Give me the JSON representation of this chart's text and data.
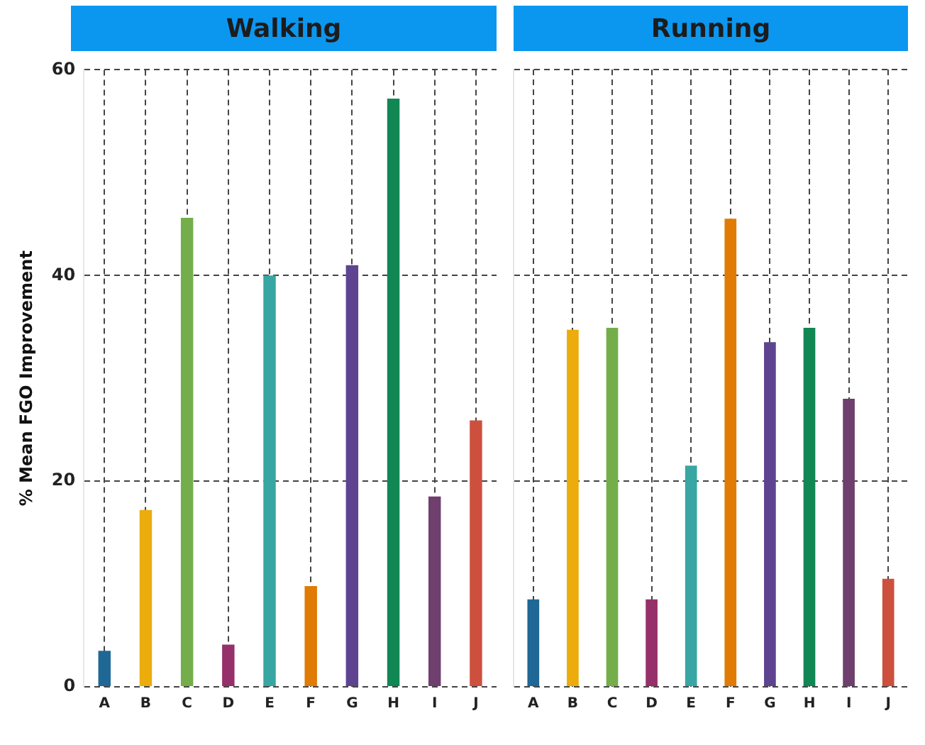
{
  "chart_data": [
    {
      "type": "bar",
      "title": "Walking",
      "ylabel": "% Mean FGO Improvement",
      "categories": [
        "A",
        "B",
        "C",
        "D",
        "E",
        "F",
        "G",
        "H",
        "I",
        "J"
      ],
      "values": [
        3.5,
        17.2,
        45.6,
        4.1,
        40.0,
        9.8,
        41.0,
        57.2,
        18.5,
        25.9
      ],
      "colors": [
        "#1f6896",
        "#ebac0c",
        "#74ae4a",
        "#96306a",
        "#38a6a3",
        "#e07b06",
        "#5e4490",
        "#118753",
        "#6f3f6e",
        "#cd503e"
      ],
      "ylim": [
        0,
        60
      ],
      "yticks": [
        0,
        20,
        40,
        60
      ],
      "grid": true
    },
    {
      "type": "bar",
      "title": "Running",
      "categories": [
        "A",
        "B",
        "C",
        "D",
        "E",
        "F",
        "G",
        "H",
        "I",
        "J"
      ],
      "values": [
        8.5,
        34.7,
        34.9,
        8.5,
        21.5,
        45.5,
        33.5,
        34.9,
        28.0,
        10.5
      ],
      "colors": [
        "#1f6896",
        "#ebac0c",
        "#74ae4a",
        "#96306a",
        "#38a6a3",
        "#e07b06",
        "#5e4490",
        "#118753",
        "#6f3f6e",
        "#cd503e"
      ],
      "ylim": [
        0,
        60
      ],
      "yticks": [
        0,
        20,
        40,
        60
      ],
      "grid": true,
      "tick_labels": "x"
    }
  ]
}
